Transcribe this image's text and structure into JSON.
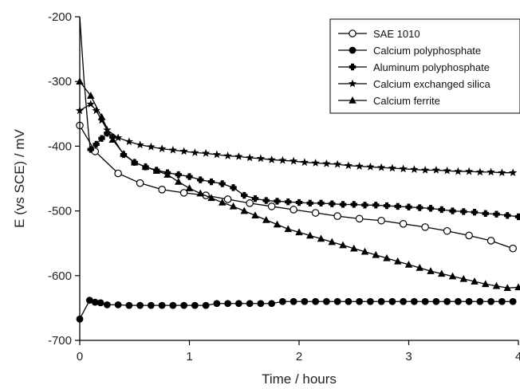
{
  "chart_data": {
    "type": "line",
    "title": "",
    "xlabel": "Time / hours",
    "ylabel": "E (vs SCE) / mV",
    "xlim": [
      0,
      4
    ],
    "ylim": [
      -700,
      -200
    ],
    "xticks": [
      "0",
      "1",
      "2",
      "3",
      "4"
    ],
    "yticks": [
      "-200",
      "-300",
      "-400",
      "-500",
      "-600",
      "-700"
    ],
    "grid": false,
    "legend_position": "top-right",
    "series": [
      {
        "name": "SAE 1010",
        "marker": "open-circle",
        "color": "#000000",
        "x": [
          0,
          0.14,
          0.35,
          0.55,
          0.75,
          0.95,
          1.15,
          1.35,
          1.55,
          1.75,
          1.95,
          2.15,
          2.35,
          2.55,
          2.75,
          2.95,
          3.15,
          3.35,
          3.55,
          3.75,
          3.95
        ],
        "y": [
          -368,
          -408,
          -442,
          -457,
          -467,
          -472,
          -476,
          -482,
          -488,
          -493,
          -498,
          -503,
          -508,
          -512,
          -515,
          -520,
          -525,
          -531,
          -538,
          -546,
          -558
        ]
      },
      {
        "name": "Calcium polyphosphate",
        "marker": "filled-circle",
        "color": "#000000",
        "x": [
          0,
          0.09,
          0.14,
          0.19,
          0.25,
          0.35,
          0.45,
          0.55,
          0.65,
          0.75,
          0.85,
          0.95,
          1.05,
          1.15,
          1.25,
          1.35,
          1.45,
          1.55,
          1.65,
          1.75,
          1.85,
          1.95,
          2.05,
          2.15,
          2.25,
          2.35,
          2.45,
          2.55,
          2.65,
          2.75,
          2.85,
          2.95,
          3.05,
          3.15,
          3.25,
          3.35,
          3.45,
          3.55,
          3.65,
          3.75,
          3.85,
          3.95
        ],
        "y": [
          -667,
          -638,
          -641,
          -642,
          -645,
          -645,
          -646,
          -646,
          -646,
          -646,
          -646,
          -646,
          -646,
          -646,
          -643,
          -643,
          -643,
          -643,
          -643,
          -643,
          -640,
          -640,
          -640,
          -640,
          -640,
          -640,
          -640,
          -640,
          -640,
          -640,
          -640,
          -640,
          -640,
          -640,
          -640,
          -640,
          -640,
          -640,
          -640,
          -640,
          -640,
          -640
        ]
      },
      {
        "name": "Aluminum polyphosphate",
        "marker": "filled-plus",
        "color": "#000000",
        "x": [
          0.1,
          0.15,
          0.2,
          0.25,
          0.3,
          0.4,
          0.5,
          0.6,
          0.7,
          0.8,
          0.9,
          1.0,
          1.1,
          1.2,
          1.3,
          1.4,
          1.5,
          1.6,
          1.7,
          1.8,
          1.9,
          2.0,
          2.1,
          2.2,
          2.3,
          2.4,
          2.5,
          2.6,
          2.7,
          2.8,
          2.9,
          3.0,
          3.1,
          3.2,
          3.3,
          3.4,
          3.5,
          3.6,
          3.7,
          3.8,
          3.9,
          4.0
        ],
        "y": [
          -405,
          -397,
          -388,
          -380,
          -386,
          -413,
          -425,
          -432,
          -437,
          -441,
          -444,
          -447,
          -452,
          -455,
          -458,
          -464,
          -476,
          -481,
          -484,
          -485,
          -486,
          -487,
          -488,
          -488,
          -489,
          -490,
          -490,
          -491,
          -491,
          -492,
          -493,
          -494,
          -495,
          -496,
          -498,
          -500,
          -501,
          -502,
          -504,
          -505,
          -507,
          -509
        ]
      },
      {
        "name": "Calcium exchanged silica",
        "marker": "filled-star",
        "color": "#000000",
        "x": [
          0,
          0.1,
          0.15,
          0.2,
          0.25,
          0.35,
          0.45,
          0.55,
          0.65,
          0.75,
          0.85,
          0.95,
          1.05,
          1.15,
          1.25,
          1.35,
          1.45,
          1.55,
          1.65,
          1.75,
          1.85,
          1.95,
          2.05,
          2.15,
          2.25,
          2.35,
          2.45,
          2.55,
          2.65,
          2.75,
          2.85,
          2.95,
          3.05,
          3.15,
          3.25,
          3.35,
          3.45,
          3.55,
          3.65,
          3.75,
          3.85,
          3.95
        ],
        "y": [
          -345,
          -335,
          -345,
          -360,
          -375,
          -387,
          -393,
          -398,
          -401,
          -404,
          -406,
          -408,
          -410,
          -411,
          -413,
          -415,
          -416,
          -418,
          -419,
          -421,
          -422,
          -423,
          -425,
          -426,
          -427,
          -428,
          -430,
          -431,
          -432,
          -433,
          -434,
          -435,
          -436,
          -437,
          -437,
          -438,
          -439,
          -439,
          -440,
          -440,
          -441,
          -441
        ]
      },
      {
        "name": "Calcium ferrite",
        "marker": "filled-triangle",
        "color": "#000000",
        "x": [
          0,
          0.1,
          0.2,
          0.3,
          0.4,
          0.5,
          0.6,
          0.7,
          0.8,
          0.9,
          1.0,
          1.1,
          1.2,
          1.3,
          1.4,
          1.5,
          1.6,
          1.7,
          1.8,
          1.9,
          2.0,
          2.1,
          2.2,
          2.3,
          2.4,
          2.5,
          2.6,
          2.7,
          2.8,
          2.9,
          3.0,
          3.1,
          3.2,
          3.3,
          3.4,
          3.5,
          3.6,
          3.7,
          3.8,
          3.9,
          4.0
        ],
        "y": [
          -300,
          -322,
          -355,
          -390,
          -412,
          -425,
          -432,
          -438,
          -444,
          -455,
          -465,
          -473,
          -480,
          -487,
          -493,
          -500,
          -507,
          -514,
          -521,
          -528,
          -533,
          -538,
          -543,
          -548,
          -553,
          -558,
          -563,
          -568,
          -573,
          -578,
          -583,
          -588,
          -593,
          -597,
          -601,
          -605,
          -609,
          -613,
          -616,
          -619,
          -618
        ]
      },
      {
        "name": "",
        "marker": "none",
        "color": "#000000",
        "x": [
          0,
          0.02,
          0.04,
          0.06,
          0.08,
          0.1
        ],
        "y": [
          -200,
          -250,
          -300,
          -340,
          -380,
          -410
        ]
      }
    ]
  }
}
